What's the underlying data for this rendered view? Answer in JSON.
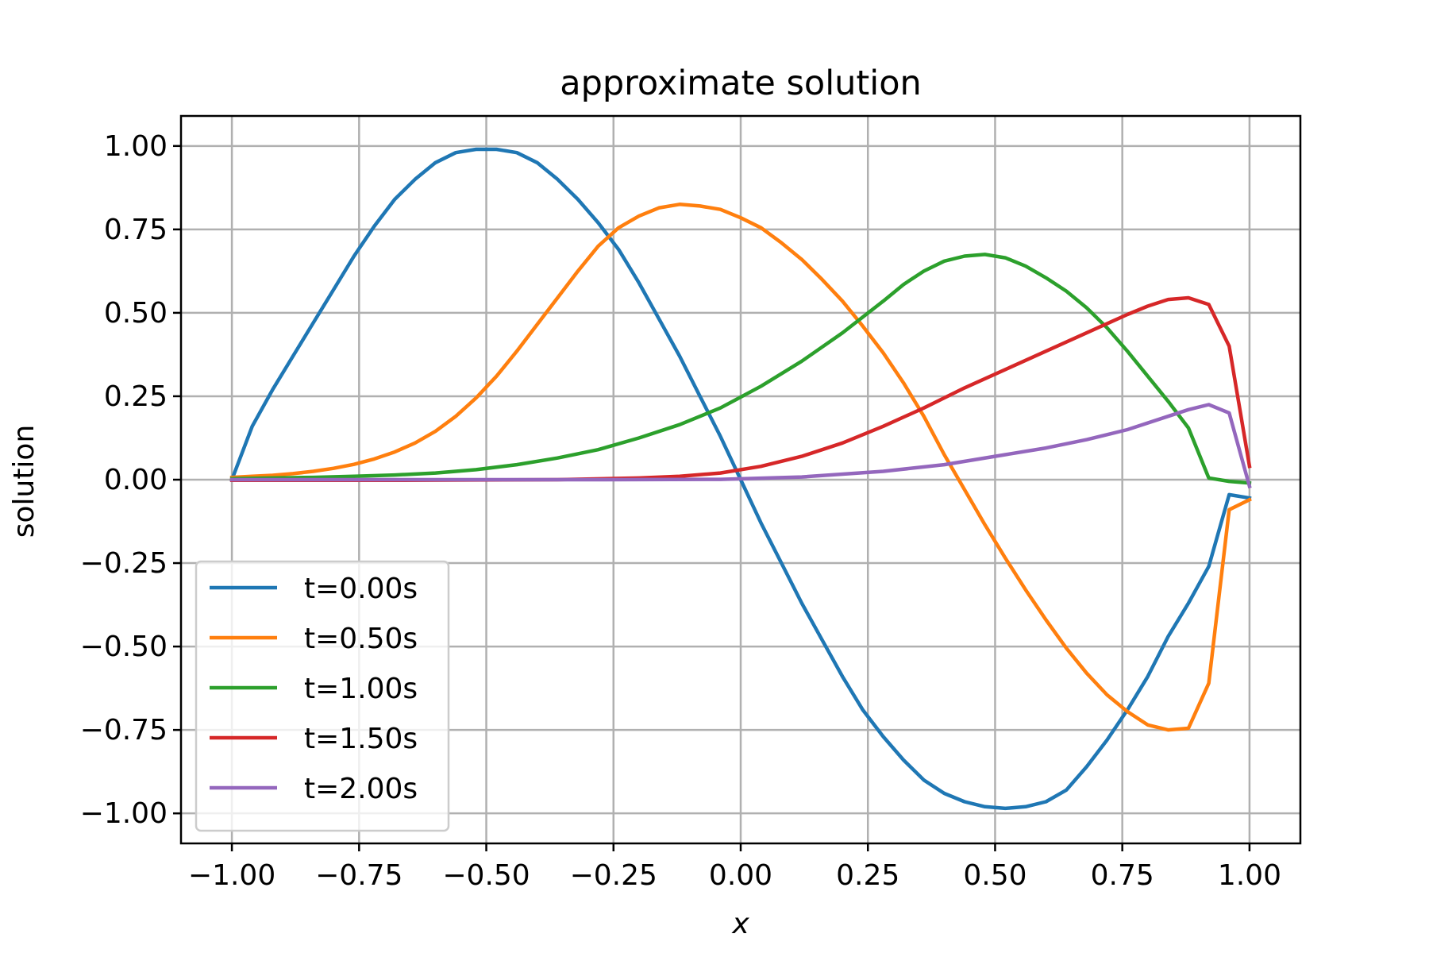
{
  "chart_data": {
    "type": "line",
    "title": "approximate solution",
    "xlabel": "x",
    "ylabel": "solution",
    "xlim": [
      -1.1,
      1.1
    ],
    "ylim": [
      -1.09,
      1.09
    ],
    "xticks": [
      -1.0,
      -0.75,
      -0.5,
      -0.25,
      0.0,
      0.25,
      0.5,
      0.75,
      1.0
    ],
    "yticks": [
      1.0,
      0.75,
      0.5,
      0.25,
      0.0,
      -0.25,
      -0.5,
      -0.75,
      -1.0
    ],
    "xtick_labels": [
      "−1.00",
      "−0.75",
      "−0.50",
      "−0.25",
      "0.00",
      "0.25",
      "0.50",
      "0.75",
      "1.00"
    ],
    "ytick_labels": [
      "1.00",
      "0.75",
      "0.50",
      "0.25",
      "0.00",
      "−0.25",
      "−0.50",
      "−0.75",
      "−1.00"
    ],
    "grid": true,
    "legend_position": "lower-left",
    "series": [
      {
        "name": "t=0.00s",
        "color": "#1f77b4",
        "x": [
          -1.0,
          -0.96,
          -0.92,
          -0.88,
          -0.84,
          -0.8,
          -0.76,
          -0.72,
          -0.68,
          -0.64,
          -0.6,
          -0.56,
          -0.52,
          -0.48,
          -0.44,
          -0.4,
          -0.36,
          -0.32,
          -0.28,
          -0.24,
          -0.2,
          -0.16,
          -0.12,
          -0.08,
          -0.04,
          0.0,
          0.04,
          0.08,
          0.12,
          0.16,
          0.2,
          0.24,
          0.28,
          0.32,
          0.36,
          0.4,
          0.44,
          0.48,
          0.52,
          0.56,
          0.6,
          0.64,
          0.68,
          0.72,
          0.76,
          0.8,
          0.84,
          0.88,
          0.92,
          0.96,
          1.0
        ],
        "y": [
          0.0,
          0.16,
          0.27,
          0.37,
          0.47,
          0.57,
          0.67,
          0.76,
          0.84,
          0.9,
          0.95,
          0.98,
          0.99,
          0.99,
          0.98,
          0.95,
          0.9,
          0.84,
          0.77,
          0.69,
          0.59,
          0.48,
          0.37,
          0.25,
          0.13,
          0.0,
          -0.13,
          -0.25,
          -0.37,
          -0.48,
          -0.59,
          -0.69,
          -0.77,
          -0.84,
          -0.9,
          -0.94,
          -0.965,
          -0.98,
          -0.985,
          -0.98,
          -0.965,
          -0.93,
          -0.86,
          -0.78,
          -0.69,
          -0.59,
          -0.47,
          -0.37,
          -0.26,
          -0.045,
          -0.055
        ]
      },
      {
        "name": "t=0.50s",
        "color": "#ff7f0e",
        "x": [
          -1.0,
          -0.96,
          -0.92,
          -0.88,
          -0.84,
          -0.8,
          -0.76,
          -0.72,
          -0.68,
          -0.64,
          -0.6,
          -0.56,
          -0.52,
          -0.48,
          -0.44,
          -0.4,
          -0.36,
          -0.32,
          -0.28,
          -0.24,
          -0.2,
          -0.16,
          -0.12,
          -0.08,
          -0.04,
          0.0,
          0.04,
          0.08,
          0.12,
          0.16,
          0.2,
          0.24,
          0.28,
          0.32,
          0.36,
          0.4,
          0.44,
          0.48,
          0.52,
          0.56,
          0.6,
          0.64,
          0.68,
          0.72,
          0.76,
          0.8,
          0.84,
          0.88,
          0.92,
          0.96,
          1.0
        ],
        "y": [
          0.007,
          0.01,
          0.013,
          0.018,
          0.025,
          0.034,
          0.046,
          0.062,
          0.083,
          0.11,
          0.145,
          0.19,
          0.245,
          0.31,
          0.385,
          0.465,
          0.545,
          0.625,
          0.7,
          0.755,
          0.79,
          0.815,
          0.825,
          0.82,
          0.81,
          0.785,
          0.755,
          0.71,
          0.66,
          0.6,
          0.535,
          0.46,
          0.38,
          0.29,
          0.19,
          0.075,
          -0.03,
          -0.135,
          -0.235,
          -0.33,
          -0.42,
          -0.505,
          -0.58,
          -0.645,
          -0.695,
          -0.735,
          -0.75,
          -0.745,
          -0.61,
          -0.09,
          -0.06
        ]
      },
      {
        "name": "t=1.00s",
        "color": "#2ca02c",
        "x": [
          -1.0,
          -0.92,
          -0.84,
          -0.76,
          -0.68,
          -0.6,
          -0.52,
          -0.44,
          -0.36,
          -0.28,
          -0.2,
          -0.12,
          -0.04,
          0.04,
          0.12,
          0.2,
          0.28,
          0.32,
          0.36,
          0.4,
          0.44,
          0.48,
          0.52,
          0.56,
          0.6,
          0.64,
          0.68,
          0.72,
          0.76,
          0.8,
          0.84,
          0.88,
          0.92,
          0.96,
          1.0
        ],
        "y": [
          0.003,
          0.005,
          0.007,
          0.01,
          0.014,
          0.02,
          0.03,
          0.045,
          0.065,
          0.09,
          0.125,
          0.165,
          0.215,
          0.28,
          0.355,
          0.44,
          0.535,
          0.585,
          0.625,
          0.655,
          0.67,
          0.675,
          0.665,
          0.64,
          0.605,
          0.565,
          0.515,
          0.455,
          0.385,
          0.31,
          0.235,
          0.155,
          0.005,
          -0.005,
          -0.01
        ]
      },
      {
        "name": "t=1.50s",
        "color": "#d62728",
        "x": [
          -1.0,
          -0.84,
          -0.68,
          -0.52,
          -0.36,
          -0.2,
          -0.12,
          -0.04,
          0.04,
          0.12,
          0.2,
          0.28,
          0.36,
          0.44,
          0.52,
          0.6,
          0.68,
          0.76,
          0.8,
          0.84,
          0.88,
          0.92,
          0.96,
          1.0
        ],
        "y": [
          -0.002,
          -0.002,
          -0.002,
          -0.001,
          0.0,
          0.005,
          0.01,
          0.02,
          0.04,
          0.07,
          0.11,
          0.16,
          0.215,
          0.275,
          0.33,
          0.385,
          0.44,
          0.495,
          0.52,
          0.54,
          0.545,
          0.525,
          0.4,
          0.04
        ]
      },
      {
        "name": "t=2.00s",
        "color": "#9467bd",
        "x": [
          -1.0,
          -0.76,
          -0.52,
          -0.28,
          -0.04,
          0.12,
          0.28,
          0.4,
          0.52,
          0.6,
          0.68,
          0.76,
          0.84,
          0.88,
          0.92,
          0.96,
          1.0
        ],
        "y": [
          0.0,
          0.0,
          0.0,
          0.0,
          0.001,
          0.008,
          0.025,
          0.045,
          0.075,
          0.095,
          0.12,
          0.15,
          0.19,
          0.21,
          0.225,
          0.2,
          -0.02
        ]
      }
    ]
  }
}
